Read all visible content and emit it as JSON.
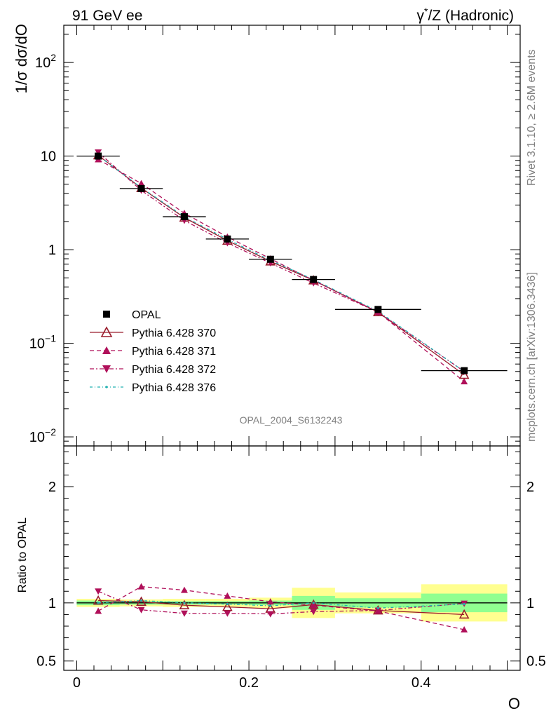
{
  "header": {
    "left": "91 GeV ee",
    "right_prefix": "γ",
    "right_suffix": "/Z (Hadronic)"
  },
  "side_labels": {
    "rivet": "Rivet 3.1.10, ≥ 2.6M events",
    "mcplots": "mcplots.cern.ch [arXiv:1306.3436]"
  },
  "analysis_id": "OPAL_2004_S6132243",
  "colors": {
    "data": "#000000",
    "p370": "#9a1c2c",
    "p371": "#b0105a",
    "p372": "#b0105a",
    "p376": "#20b0b0",
    "band_stat": "#90ff90",
    "band_total": "#ffff90"
  },
  "chart_data": [
    {
      "panel": "main",
      "type": "scatter",
      "ylabel": "1/σ dσ/dO",
      "yscale": "log",
      "xlim": [
        -0.015,
        0.515
      ],
      "ylim": [
        0.008,
        250
      ],
      "yticks": [
        {
          "value": 0.01,
          "base": "10",
          "exp": "−2"
        },
        {
          "value": 0.1,
          "base": "10",
          "exp": "−1"
        },
        {
          "value": 1,
          "label": "1"
        },
        {
          "value": 10,
          "label": "10"
        },
        {
          "value": 100,
          "base": "10",
          "exp": "2"
        }
      ],
      "legend_position": "middle-left",
      "x": [
        0.025,
        0.075,
        0.125,
        0.175,
        0.225,
        0.275,
        0.35,
        0.45
      ],
      "xerr": [
        0.025,
        0.025,
        0.025,
        0.025,
        0.025,
        0.025,
        0.05,
        0.05
      ],
      "series": [
        {
          "name": "OPAL",
          "key": "data",
          "values": [
            10.0,
            4.5,
            2.25,
            1.3,
            0.79,
            0.48,
            0.23,
            0.051
          ]
        },
        {
          "name": "Pythia 6.428 370",
          "key": "p370",
          "values": [
            10.2,
            4.55,
            2.2,
            1.25,
            0.75,
            0.47,
            0.215,
            0.046
          ]
        },
        {
          "name": "Pythia 6.428 371",
          "key": "p371",
          "values": [
            9.2,
            5.1,
            2.45,
            1.37,
            0.8,
            0.47,
            0.215,
            0.039
          ]
        },
        {
          "name": "Pythia 6.428 372",
          "key": "p372",
          "values": [
            11.0,
            4.3,
            2.05,
            1.18,
            0.72,
            0.44,
            0.215,
            0.05
          ]
        },
        {
          "name": "Pythia 6.428 376",
          "key": "p376",
          "values": [
            10.1,
            4.6,
            2.25,
            1.29,
            0.77,
            0.48,
            0.22,
            0.05
          ]
        }
      ]
    },
    {
      "panel": "ratio",
      "type": "line",
      "ylabel": "Ratio to OPAL",
      "xlabel": "O",
      "xlim": [
        -0.015,
        0.515
      ],
      "ylim": [
        0.42,
        2.35
      ],
      "xticks": [
        {
          "value": 0,
          "label": "0"
        },
        {
          "value": 0.2,
          "label": "0.2"
        },
        {
          "value": 0.4,
          "label": "0.4"
        }
      ],
      "yticks": [
        {
          "value": 0.5,
          "label": "0.5"
        },
        {
          "value": 1,
          "label": "1"
        },
        {
          "value": 2,
          "label": "2"
        }
      ],
      "bands": [
        {
          "xlo": 0.0,
          "xhi": 0.05,
          "stat": 0.02,
          "total": 0.035
        },
        {
          "xlo": 0.05,
          "xhi": 0.1,
          "stat": 0.015,
          "total": 0.03
        },
        {
          "xlo": 0.1,
          "xhi": 0.15,
          "stat": 0.015,
          "total": 0.035
        },
        {
          "xlo": 0.15,
          "xhi": 0.2,
          "stat": 0.015,
          "total": 0.035
        },
        {
          "xlo": 0.2,
          "xhi": 0.25,
          "stat": 0.02,
          "total": 0.045
        },
        {
          "xlo": 0.25,
          "xhi": 0.3,
          "stat": 0.06,
          "total": 0.13
        },
        {
          "xlo": 0.3,
          "xhi": 0.4,
          "stat": 0.04,
          "total": 0.09
        },
        {
          "xlo": 0.4,
          "xhi": 0.5,
          "stat": 0.08,
          "total": 0.16
        }
      ],
      "series": [
        {
          "name": "Pythia 6.428 370",
          "key": "p370",
          "values": [
            1.02,
            1.01,
            0.98,
            0.965,
            0.95,
            0.985,
            0.935,
            0.9
          ]
        },
        {
          "name": "Pythia 6.428 371",
          "key": "p371",
          "values": [
            0.93,
            1.14,
            1.11,
            1.06,
            1.01,
            0.98,
            0.93,
            0.77
          ]
        },
        {
          "name": "Pythia 6.428 372",
          "key": "p372",
          "values": [
            1.1,
            0.94,
            0.91,
            0.91,
            0.905,
            0.925,
            0.935,
            0.995
          ]
        },
        {
          "name": "Pythia 6.428 376",
          "key": "p376",
          "values": [
            1.0,
            1.02,
            1.0,
            0.99,
            0.975,
            1.0,
            0.955,
            0.99
          ]
        }
      ]
    }
  ]
}
